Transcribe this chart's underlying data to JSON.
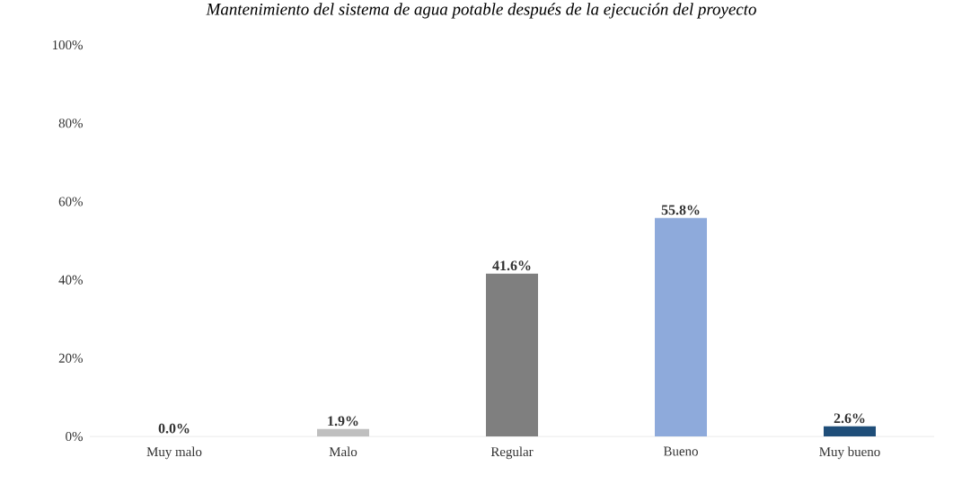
{
  "chart_data": {
    "type": "bar",
    "title": "Mantenimiento del sistema de agua potable después de la ejecución del proyecto",
    "categories": [
      "Muy malo",
      "Malo",
      "Regular",
      "Bueno",
      "Muy bueno"
    ],
    "values": [
      0.0,
      1.9,
      41.6,
      55.8,
      2.6
    ],
    "colors": [
      "#a6a6a6",
      "#bfbfbf",
      "#7f7f7f",
      "#8eaadb",
      "#1f4e79"
    ],
    "value_labels": [
      "0.0%",
      "1.9%",
      "41.6%",
      "55.8%",
      "2.6%"
    ],
    "ylim": [
      0,
      100
    ],
    "yticks": [
      {
        "value": 0,
        "label": "0%"
      },
      {
        "value": 20,
        "label": "20%"
      },
      {
        "value": 40,
        "label": "40%"
      },
      {
        "value": 60,
        "label": "60%"
      },
      {
        "value": 80,
        "label": "80%"
      },
      {
        "value": 100,
        "label": "100%"
      }
    ]
  }
}
